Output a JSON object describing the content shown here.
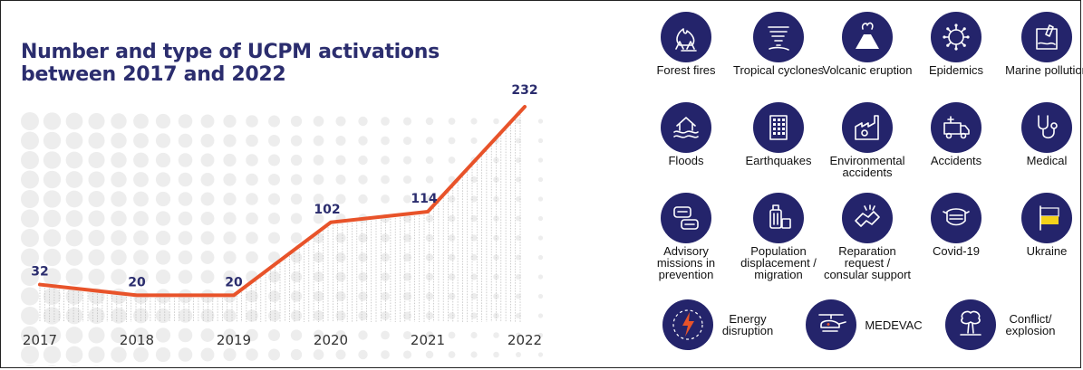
{
  "title": "Number and type of UCPM activations between 2017 and 2022",
  "colors": {
    "line": "#e8532a",
    "title": "#2b2d6e",
    "icon_bg": "#24246b",
    "dots": "#ededed"
  },
  "chart_data": {
    "type": "line",
    "title": "Number and type of UCPM activations between 2017 and 2022",
    "xlabel": "",
    "ylabel": "",
    "categories": [
      "2017",
      "2018",
      "2019",
      "2020",
      "2021",
      "2022"
    ],
    "values": [
      32,
      20,
      20,
      102,
      114,
      232
    ],
    "data_labels": [
      "32",
      "20",
      "20",
      "102",
      "114",
      "232"
    ],
    "ylim": [
      0,
      240
    ],
    "grid": false,
    "legend": "none"
  },
  "icons": [
    {
      "label": "Forest fires",
      "icon": "fire-icon"
    },
    {
      "label": "Tropical cyclones",
      "icon": "tornado-icon"
    },
    {
      "label": "Volcanic eruption",
      "icon": "volcano-icon"
    },
    {
      "label": "Epidemics",
      "icon": "virus-icon"
    },
    {
      "label": "Marine pollution",
      "icon": "oil-bottle-icon"
    },
    {
      "label": "Floods",
      "icon": "flood-house-icon"
    },
    {
      "label": "Earthquakes",
      "icon": "building-icon"
    },
    {
      "label": "Environmental accidents",
      "icon": "factory-icon"
    },
    {
      "label": "Accidents",
      "icon": "ambulance-icon"
    },
    {
      "label": "Medical",
      "icon": "stethoscope-icon"
    },
    {
      "label": "Advisory missions in prevention",
      "icon": "chat-bubbles-icon"
    },
    {
      "label": "Population displacement / migration",
      "icon": "luggage-icon"
    },
    {
      "label": "Reparation request / consular support",
      "icon": "handshake-icon"
    },
    {
      "label": "Covid-19",
      "icon": "face-mask-icon"
    },
    {
      "label": "Ukraine",
      "icon": "ukraine-flag-icon"
    },
    {
      "label": "Energy disruption",
      "icon": "lightning-icon"
    },
    {
      "label": "MEDEVAC",
      "icon": "helicopter-icon"
    },
    {
      "label": "Conflict/ explosion",
      "icon": "explosion-icon"
    }
  ]
}
